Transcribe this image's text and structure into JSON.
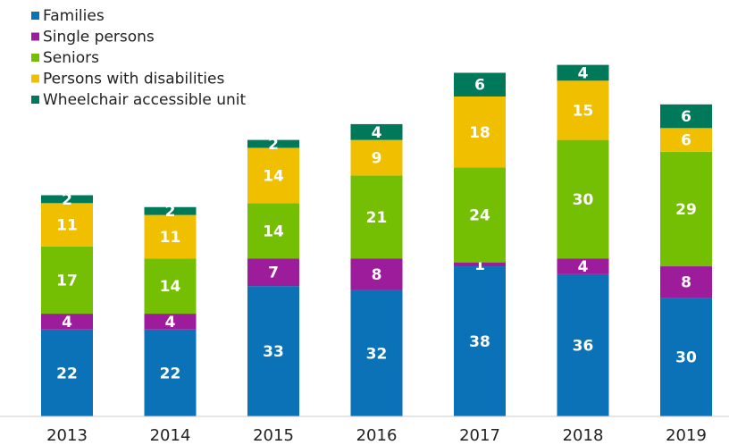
{
  "chart_data": {
    "type": "stacked_bar",
    "categories": [
      "2013",
      "2014",
      "2015",
      "2016",
      "2017",
      "2018",
      "2019"
    ],
    "series": [
      {
        "name": "Families",
        "color": "#0b72b8",
        "values": [
          22,
          22,
          33,
          32,
          38,
          36,
          30
        ]
      },
      {
        "name": "Single persons",
        "color": "#9c1c9c",
        "values": [
          4,
          4,
          7,
          8,
          1,
          4,
          8
        ]
      },
      {
        "name": "Seniors",
        "color": "#74bf04",
        "values": [
          17,
          14,
          14,
          21,
          24,
          30,
          29
        ]
      },
      {
        "name": "Persons with disabilities",
        "color": "#f0c000",
        "values": [
          11,
          11,
          14,
          9,
          18,
          15,
          6
        ]
      },
      {
        "name": "Wheelchair accessible unit",
        "color": "#00795a",
        "values": [
          2,
          2,
          2,
          4,
          6,
          4,
          6
        ]
      }
    ],
    "legend": "top-left"
  }
}
